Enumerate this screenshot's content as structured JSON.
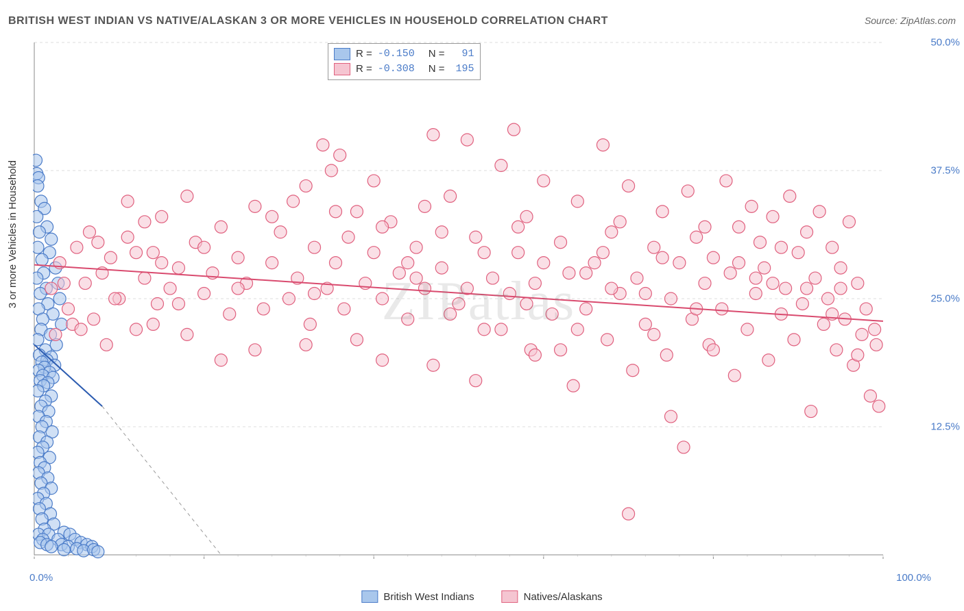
{
  "title": "BRITISH WEST INDIAN VS NATIVE/ALASKAN 3 OR MORE VEHICLES IN HOUSEHOLD CORRELATION CHART",
  "source": "Source: ZipAtlas.com",
  "y_axis_label": "3 or more Vehicles in Household",
  "watermark": "ZIPatlas",
  "chart": {
    "type": "scatter",
    "background_color": "#ffffff",
    "grid_color": "#dddddd",
    "axis_color": "#888888",
    "xlim": [
      0,
      100
    ],
    "ylim": [
      0,
      50
    ],
    "x_ticks": [
      0,
      20,
      40,
      60,
      80,
      100
    ],
    "x_labels_shown": {
      "0": "0.0%",
      "100": "100.0%"
    },
    "y_ticks": [
      12.5,
      25.0,
      37.5,
      50.0
    ],
    "y_tick_format": "%.1f%%",
    "marker_radius": 9,
    "marker_stroke_width": 1.2,
    "series": [
      {
        "name": "British West Indians",
        "fill": "#a9c7ec",
        "stroke": "#4a7bc8",
        "fill_opacity": 0.55,
        "R": "-0.150",
        "N": "91",
        "trend": {
          "x1": 0,
          "y1": 20.5,
          "x2": 8,
          "y2": 14.5,
          "dash_extend_x": 22,
          "dash_extend_y": 0,
          "color": "#2b5bb0",
          "width": 2
        },
        "points": [
          [
            0.2,
            38.5
          ],
          [
            0.3,
            37.2
          ],
          [
            0.5,
            36.8
          ],
          [
            0.4,
            36.0
          ],
          [
            0.8,
            34.5
          ],
          [
            1.2,
            33.8
          ],
          [
            0.3,
            33.0
          ],
          [
            1.5,
            32.0
          ],
          [
            0.6,
            31.5
          ],
          [
            2.0,
            30.8
          ],
          [
            0.4,
            30.0
          ],
          [
            1.8,
            29.5
          ],
          [
            0.9,
            28.8
          ],
          [
            2.5,
            28.0
          ],
          [
            1.1,
            27.5
          ],
          [
            0.3,
            27.0
          ],
          [
            2.8,
            26.5
          ],
          [
            1.4,
            26.0
          ],
          [
            0.7,
            25.5
          ],
          [
            3.0,
            25.0
          ],
          [
            1.6,
            24.5
          ],
          [
            0.5,
            24.0
          ],
          [
            2.2,
            23.5
          ],
          [
            1.0,
            23.0
          ],
          [
            3.2,
            22.5
          ],
          [
            0.8,
            22.0
          ],
          [
            1.9,
            21.5
          ],
          [
            0.4,
            21.0
          ],
          [
            2.6,
            20.5
          ],
          [
            1.3,
            20.0
          ],
          [
            0.6,
            19.5
          ],
          [
            2.0,
            19.3
          ],
          [
            1.5,
            19.0
          ],
          [
            0.9,
            18.8
          ],
          [
            2.4,
            18.5
          ],
          [
            1.2,
            18.3
          ],
          [
            0.5,
            18.0
          ],
          [
            1.8,
            17.8
          ],
          [
            1.0,
            17.5
          ],
          [
            2.2,
            17.3
          ],
          [
            0.7,
            17.0
          ],
          [
            1.6,
            16.8
          ],
          [
            1.1,
            16.5
          ],
          [
            0.4,
            16.0
          ],
          [
            2.0,
            15.5
          ],
          [
            1.3,
            15.0
          ],
          [
            0.8,
            14.5
          ],
          [
            1.7,
            14.0
          ],
          [
            0.5,
            13.5
          ],
          [
            1.4,
            13.0
          ],
          [
            0.9,
            12.5
          ],
          [
            2.1,
            12.0
          ],
          [
            0.6,
            11.5
          ],
          [
            1.5,
            11.0
          ],
          [
            1.0,
            10.5
          ],
          [
            0.4,
            10.0
          ],
          [
            1.8,
            9.5
          ],
          [
            0.7,
            9.0
          ],
          [
            1.2,
            8.5
          ],
          [
            0.5,
            8.0
          ],
          [
            1.6,
            7.5
          ],
          [
            0.8,
            7.0
          ],
          [
            2.0,
            6.5
          ],
          [
            1.1,
            6.0
          ],
          [
            0.4,
            5.5
          ],
          [
            1.4,
            5.0
          ],
          [
            0.6,
            4.5
          ],
          [
            1.9,
            4.0
          ],
          [
            0.9,
            3.5
          ],
          [
            2.3,
            3.0
          ],
          [
            1.2,
            2.5
          ],
          [
            0.5,
            2.0
          ],
          [
            1.7,
            2.0
          ],
          [
            3.5,
            2.2
          ],
          [
            4.2,
            2.0
          ],
          [
            1.0,
            1.5
          ],
          [
            2.8,
            1.5
          ],
          [
            4.8,
            1.5
          ],
          [
            0.7,
            1.2
          ],
          [
            3.2,
            1.0
          ],
          [
            5.5,
            1.2
          ],
          [
            1.5,
            1.0
          ],
          [
            4.0,
            0.8
          ],
          [
            6.2,
            1.0
          ],
          [
            2.0,
            0.8
          ],
          [
            5.0,
            0.6
          ],
          [
            6.8,
            0.8
          ],
          [
            3.5,
            0.5
          ],
          [
            5.8,
            0.4
          ],
          [
            7.0,
            0.5
          ],
          [
            7.5,
            0.3
          ]
        ]
      },
      {
        "name": "Natives/Alaskans",
        "fill": "#f5c5d1",
        "stroke": "#e0607e",
        "fill_opacity": 0.55,
        "R": "-0.308",
        "N": "195",
        "trend": {
          "x1": 0,
          "y1": 28.3,
          "x2": 100,
          "y2": 22.8,
          "color": "#d94a6e",
          "width": 2
        },
        "points": [
          [
            2,
            26.0
          ],
          [
            3,
            28.5
          ],
          [
            4,
            24.0
          ],
          [
            4.5,
            22.5
          ],
          [
            5,
            30.0
          ],
          [
            6,
            26.5
          ],
          [
            7,
            23.0
          ],
          [
            8,
            27.5
          ],
          [
            8.5,
            20.5
          ],
          [
            9,
            29.0
          ],
          [
            10,
            25.0
          ],
          [
            11,
            31.0
          ],
          [
            12,
            22.0
          ],
          [
            13,
            27.0
          ],
          [
            14,
            29.5
          ],
          [
            14.5,
            24.5
          ],
          [
            15,
            33.0
          ],
          [
            16,
            26.0
          ],
          [
            17,
            28.0
          ],
          [
            18,
            21.5
          ],
          [
            19,
            30.5
          ],
          [
            20,
            25.5
          ],
          [
            21,
            27.5
          ],
          [
            22,
            32.0
          ],
          [
            23,
            23.5
          ],
          [
            24,
            29.0
          ],
          [
            25,
            26.5
          ],
          [
            26,
            34.0
          ],
          [
            27,
            24.0
          ],
          [
            28,
            28.5
          ],
          [
            29,
            31.5
          ],
          [
            30,
            25.0
          ],
          [
            30.5,
            34.5
          ],
          [
            31,
            27.0
          ],
          [
            32,
            36.0
          ],
          [
            32.5,
            22.5
          ],
          [
            33,
            30.0
          ],
          [
            34,
            40.0
          ],
          [
            34.5,
            26.0
          ],
          [
            35,
            37.5
          ],
          [
            35.5,
            28.5
          ],
          [
            36,
            39.0
          ],
          [
            36.5,
            24.0
          ],
          [
            37,
            31.0
          ],
          [
            38,
            33.5
          ],
          [
            39,
            26.5
          ],
          [
            40,
            29.5
          ],
          [
            41,
            25.0
          ],
          [
            42,
            32.5
          ],
          [
            43,
            27.5
          ],
          [
            44,
            23.0
          ],
          [
            45,
            30.0
          ],
          [
            46,
            26.0
          ],
          [
            47,
            41.0
          ],
          [
            48,
            28.0
          ],
          [
            49,
            35.0
          ],
          [
            50,
            24.5
          ],
          [
            51,
            40.5
          ],
          [
            52,
            31.0
          ],
          [
            53,
            22.0
          ],
          [
            54,
            27.0
          ],
          [
            55,
            38.0
          ],
          [
            56,
            25.5
          ],
          [
            56.5,
            41.5
          ],
          [
            57,
            29.5
          ],
          [
            58,
            33.0
          ],
          [
            58.5,
            20.0
          ],
          [
            59,
            26.5
          ],
          [
            60,
            36.5
          ],
          [
            61,
            23.5
          ],
          [
            62,
            30.5
          ],
          [
            63,
            27.5
          ],
          [
            63.5,
            16.5
          ],
          [
            64,
            34.5
          ],
          [
            65,
            24.0
          ],
          [
            66,
            28.5
          ],
          [
            67,
            40.0
          ],
          [
            67.5,
            21.0
          ],
          [
            68,
            31.5
          ],
          [
            69,
            25.5
          ],
          [
            70,
            36.0
          ],
          [
            70.5,
            18.0
          ],
          [
            71,
            27.0
          ],
          [
            72,
            22.5
          ],
          [
            73,
            30.0
          ],
          [
            74,
            33.5
          ],
          [
            74.5,
            19.5
          ],
          [
            75,
            25.0
          ],
          [
            76,
            28.5
          ],
          [
            76.5,
            10.5
          ],
          [
            77,
            35.5
          ],
          [
            77.5,
            23.0
          ],
          [
            78,
            31.0
          ],
          [
            79,
            26.5
          ],
          [
            79.5,
            20.5
          ],
          [
            80,
            29.0
          ],
          [
            81,
            24.0
          ],
          [
            81.5,
            36.5
          ],
          [
            82,
            27.5
          ],
          [
            82.5,
            17.5
          ],
          [
            83,
            32.0
          ],
          [
            84,
            22.0
          ],
          [
            84.5,
            34.0
          ],
          [
            85,
            25.5
          ],
          [
            85.5,
            30.5
          ],
          [
            86,
            28.0
          ],
          [
            86.5,
            19.0
          ],
          [
            87,
            33.0
          ],
          [
            88,
            23.5
          ],
          [
            88.5,
            26.0
          ],
          [
            89,
            35.0
          ],
          [
            89.5,
            21.0
          ],
          [
            90,
            29.5
          ],
          [
            90.5,
            24.5
          ],
          [
            91,
            31.5
          ],
          [
            91.5,
            14.0
          ],
          [
            92,
            27.0
          ],
          [
            92.5,
            33.5
          ],
          [
            93,
            22.5
          ],
          [
            93.5,
            25.0
          ],
          [
            94,
            30.0
          ],
          [
            94.5,
            20.0
          ],
          [
            95,
            28.0
          ],
          [
            95.5,
            23.0
          ],
          [
            96,
            32.5
          ],
          [
            96.5,
            18.5
          ],
          [
            97,
            26.5
          ],
          [
            97.5,
            21.5
          ],
          [
            98,
            24.0
          ],
          [
            98.5,
            15.5
          ],
          [
            99,
            22.0
          ],
          [
            99.2,
            20.5
          ],
          [
            99.5,
            14.5
          ],
          [
            70,
            4.0
          ],
          [
            75,
            13.5
          ],
          [
            11,
            34.5
          ],
          [
            13,
            32.5
          ],
          [
            18,
            35.0
          ],
          [
            22,
            19.0
          ],
          [
            26,
            20.0
          ],
          [
            32,
            20.5
          ],
          [
            41,
            19.0
          ],
          [
            2.5,
            21.5
          ],
          [
            3.5,
            26.5
          ],
          [
            5.5,
            22.0
          ],
          [
            6.5,
            31.5
          ],
          [
            47,
            18.5
          ],
          [
            52,
            17.0
          ],
          [
            59,
            19.5
          ],
          [
            44,
            28.5
          ],
          [
            38,
            21.0
          ],
          [
            49,
            23.5
          ],
          [
            55,
            22.0
          ],
          [
            62,
            20.0
          ],
          [
            68,
            26.0
          ],
          [
            73,
            21.5
          ],
          [
            80,
            20.0
          ],
          [
            33,
            25.5
          ],
          [
            17,
            24.5
          ],
          [
            24,
            26.0
          ],
          [
            35.5,
            33.5
          ],
          [
            41,
            32.0
          ],
          [
            48,
            31.5
          ],
          [
            53,
            29.5
          ],
          [
            60,
            28.5
          ],
          [
            67,
            29.5
          ],
          [
            15,
            28.5
          ],
          [
            9.5,
            25.0
          ],
          [
            12,
            29.5
          ],
          [
            20,
            30.0
          ],
          [
            28,
            33.0
          ],
          [
            45,
            27.0
          ],
          [
            51,
            26.0
          ],
          [
            58,
            24.5
          ],
          [
            65,
            27.5
          ],
          [
            72,
            25.5
          ],
          [
            78,
            24.0
          ],
          [
            85,
            27.0
          ],
          [
            91,
            26.0
          ],
          [
            97,
            19.5
          ],
          [
            88,
            30.0
          ],
          [
            83,
            28.5
          ],
          [
            79,
            32.0
          ],
          [
            74,
            29.0
          ],
          [
            69,
            32.5
          ],
          [
            95,
            26.0
          ],
          [
            94,
            23.5
          ],
          [
            7.5,
            30.5
          ],
          [
            14,
            22.5
          ],
          [
            87,
            26.5
          ],
          [
            64,
            22.0
          ],
          [
            57,
            32.0
          ],
          [
            46,
            34.0
          ],
          [
            40,
            36.5
          ]
        ]
      }
    ]
  },
  "legend": {
    "series1_label": "British West Indians",
    "series2_label": "Natives/Alaskans"
  },
  "stats_labels": {
    "R": "R =",
    "N": "N ="
  }
}
